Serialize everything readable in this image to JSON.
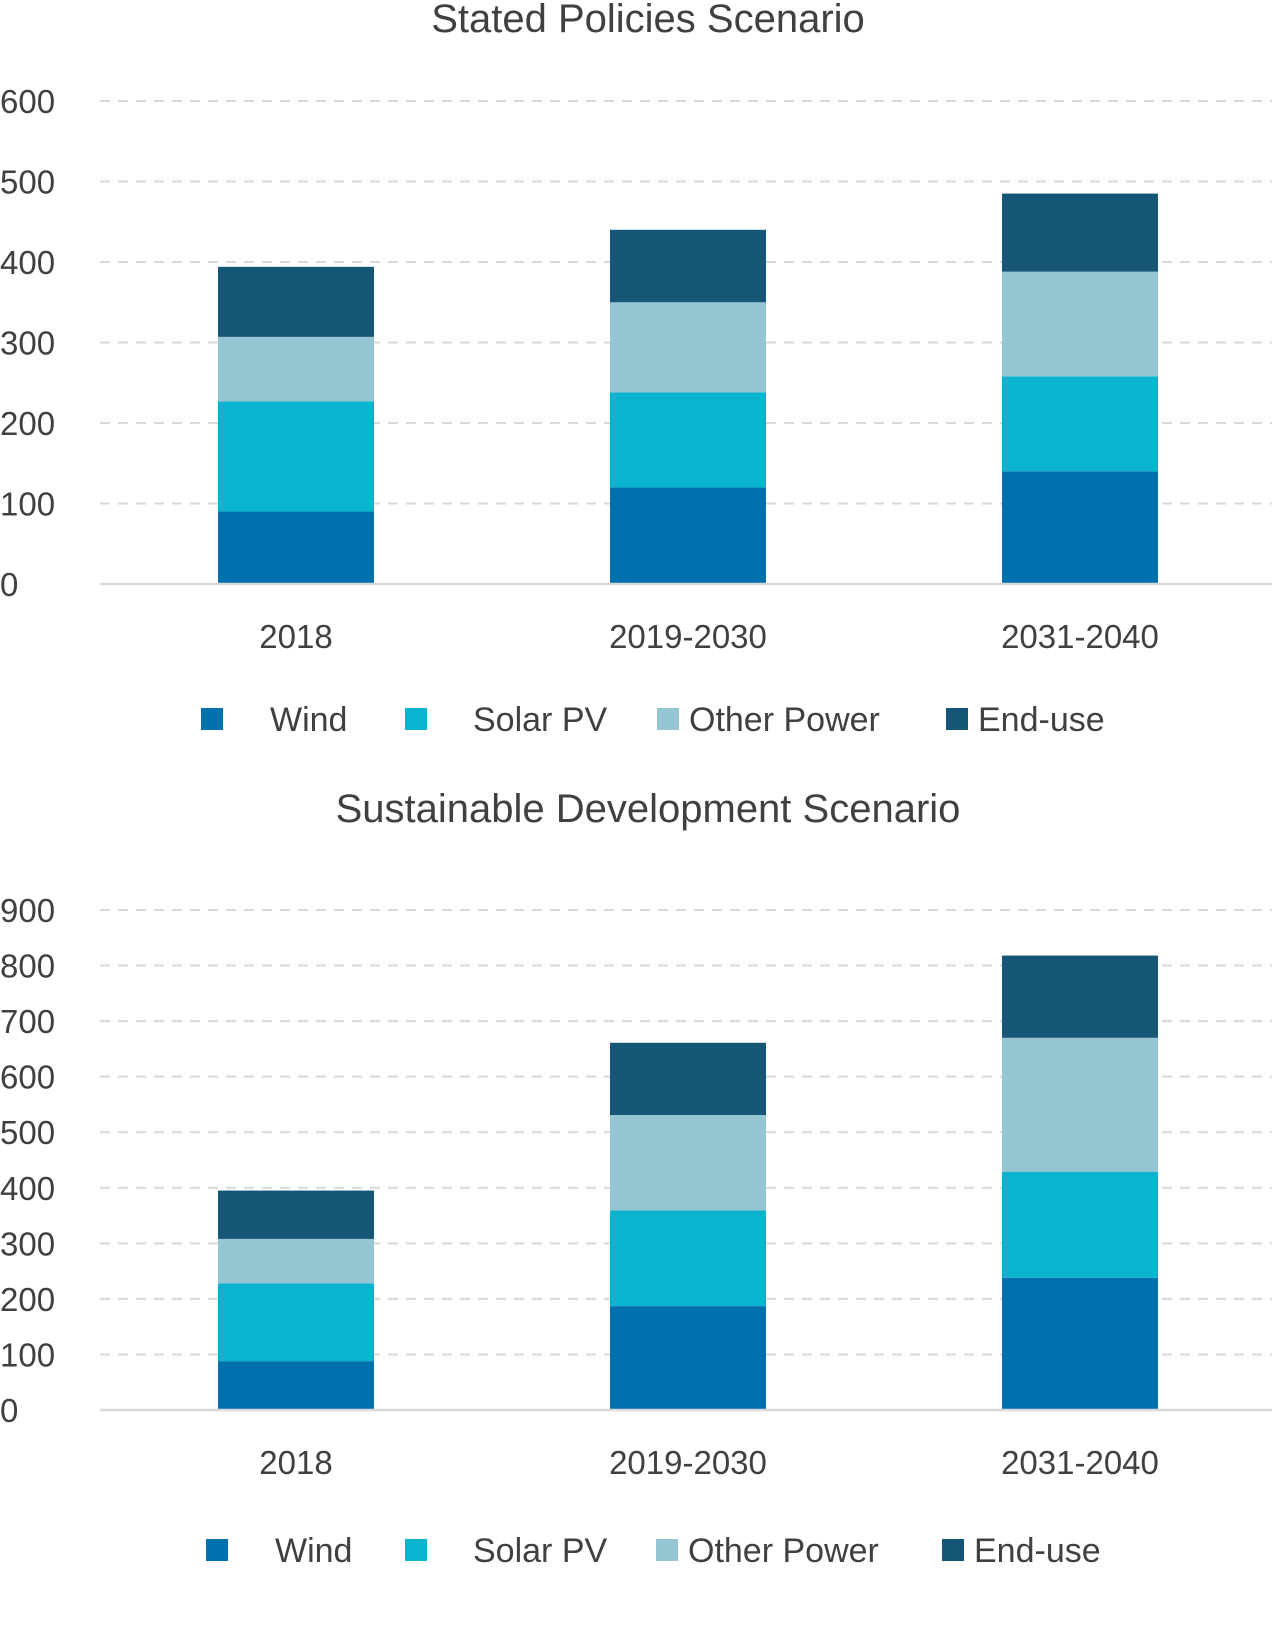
{
  "chart_data": [
    {
      "type": "bar",
      "stacked": true,
      "title": "Stated Policies Scenario",
      "xlabel": "",
      "ylabel": "",
      "categories": [
        "2018",
        "2019-2030",
        "2031-2040"
      ],
      "series": [
        {
          "name": "Wind",
          "color": "#0070AF",
          "values": [
            90,
            120,
            140
          ]
        },
        {
          "name": "Solar PV",
          "color": "#0AB4CE",
          "values": [
            137,
            118,
            118
          ]
        },
        {
          "name": "Other Power",
          "color": "#95C4D3",
          "values": [
            80,
            112,
            130
          ]
        },
        {
          "name": "End-use",
          "color": "#155575",
          "values": [
            87,
            90,
            97
          ]
        }
      ],
      "ylim": [
        0,
        600
      ],
      "yticks": [
        0,
        100,
        200,
        300,
        400,
        500,
        600
      ],
      "grid": "horizontal-dashed",
      "legend_position": "bottom"
    },
    {
      "type": "bar",
      "stacked": true,
      "title": "Sustainable Development Scenario",
      "xlabel": "",
      "ylabel": "",
      "categories": [
        "2018",
        "2019-2030",
        "2031-2040"
      ],
      "series": [
        {
          "name": "Wind",
          "color": "#0070AF",
          "values": [
            88,
            187,
            238
          ]
        },
        {
          "name": "Solar PV",
          "color": "#0AB4CE",
          "values": [
            140,
            172,
            191
          ]
        },
        {
          "name": "Other Power",
          "color": "#95C4D3",
          "values": [
            80,
            172,
            241
          ]
        },
        {
          "name": "End-use",
          "color": "#155575",
          "values": [
            87,
            130,
            148
          ]
        }
      ],
      "ylim": [
        0,
        900
      ],
      "yticks": [
        0,
        100,
        200,
        300,
        400,
        500,
        600,
        700,
        800,
        900
      ],
      "grid": "horizontal-dashed",
      "legend_position": "bottom"
    }
  ],
  "style": {
    "text_color": "#404040",
    "axis_color": "#D9D9D9",
    "grid_color": "#D9D9D9"
  }
}
